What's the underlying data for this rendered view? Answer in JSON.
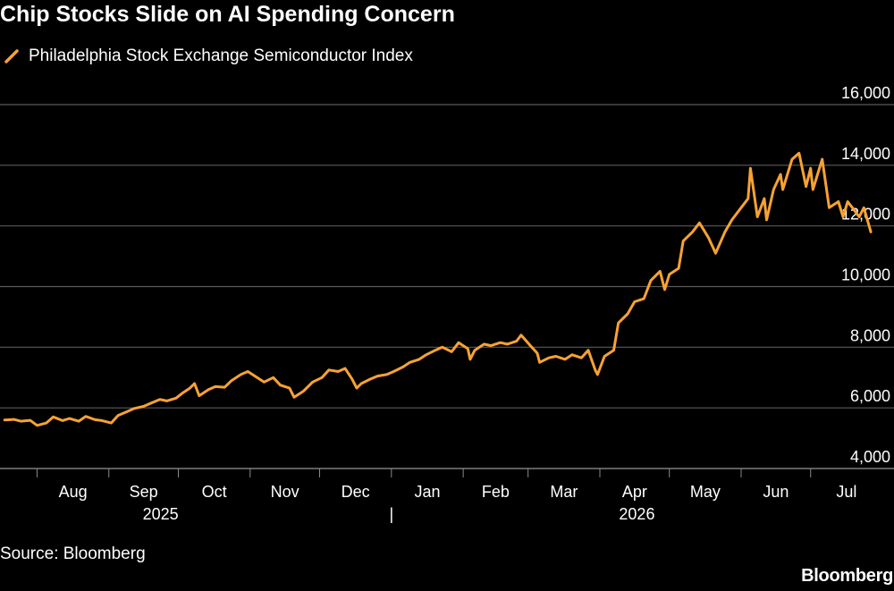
{
  "title": "Chip Stocks Slide on AI Spending Concern",
  "source": "Source: Bloomberg",
  "brand": "Bloomberg",
  "colors": {
    "background": "#000000",
    "series": "#F7A233",
    "grid": "#5a5a5a",
    "text": "#ffffff"
  },
  "chart_data": {
    "type": "line",
    "title": "Chip Stocks Slide on AI Spending Concern",
    "legend_position": "top-left",
    "grid": "horizontal",
    "ylim": [
      4000,
      16000
    ],
    "y_ticks": [
      4000,
      6000,
      8000,
      10000,
      12000,
      14000,
      16000
    ],
    "y_tick_labels": [
      "4,000",
      "6,000",
      "8,000",
      "10,000",
      "12,000",
      "14,000",
      "16,000"
    ],
    "x_month_labels": [
      "Aug",
      "Sep",
      "Oct",
      "Nov",
      "Dec",
      "Jan",
      "Feb",
      "Mar",
      "Apr",
      "May",
      "Jun",
      "Jul"
    ],
    "x_year_labels": [
      "2025",
      "2026"
    ],
    "x_year_divider": "|",
    "series": [
      {
        "name": "Philadelphia Stock Exchange Semiconductor Index",
        "color": "#F7A233",
        "points": [
          [
            "2025-07-18",
            5600
          ],
          [
            "2025-07-22",
            5620
          ],
          [
            "2025-07-25",
            5560
          ],
          [
            "2025-07-29",
            5590
          ],
          [
            "2025-08-01",
            5420
          ],
          [
            "2025-08-05",
            5500
          ],
          [
            "2025-08-08",
            5700
          ],
          [
            "2025-08-12",
            5580
          ],
          [
            "2025-08-15",
            5650
          ],
          [
            "2025-08-19",
            5560
          ],
          [
            "2025-08-22",
            5720
          ],
          [
            "2025-08-26",
            5610
          ],
          [
            "2025-08-29",
            5580
          ],
          [
            "2025-09-02",
            5500
          ],
          [
            "2025-09-05",
            5750
          ],
          [
            "2025-09-09",
            5880
          ],
          [
            "2025-09-12",
            5980
          ],
          [
            "2025-09-16",
            6050
          ],
          [
            "2025-09-19",
            6150
          ],
          [
            "2025-09-23",
            6280
          ],
          [
            "2025-09-26",
            6230
          ],
          [
            "2025-09-30",
            6320
          ],
          [
            "2025-10-03",
            6500
          ],
          [
            "2025-10-06",
            6650
          ],
          [
            "2025-10-08",
            6800
          ],
          [
            "2025-10-10",
            6400
          ],
          [
            "2025-10-14",
            6600
          ],
          [
            "2025-10-17",
            6700
          ],
          [
            "2025-10-21",
            6680
          ],
          [
            "2025-10-24",
            6900
          ],
          [
            "2025-10-28",
            7100
          ],
          [
            "2025-10-31",
            7200
          ],
          [
            "2025-11-04",
            7000
          ],
          [
            "2025-11-07",
            6850
          ],
          [
            "2025-11-11",
            7000
          ],
          [
            "2025-11-14",
            6750
          ],
          [
            "2025-11-18",
            6650
          ],
          [
            "2025-11-20",
            6350
          ],
          [
            "2025-11-24",
            6550
          ],
          [
            "2025-11-28",
            6850
          ],
          [
            "2025-12-02",
            7000
          ],
          [
            "2025-12-05",
            7250
          ],
          [
            "2025-12-09",
            7200
          ],
          [
            "2025-12-12",
            7300
          ],
          [
            "2025-12-15",
            6950
          ],
          [
            "2025-12-17",
            6650
          ],
          [
            "2025-12-19",
            6800
          ],
          [
            "2025-12-23",
            6950
          ],
          [
            "2025-12-26",
            7050
          ],
          [
            "2025-12-30",
            7100
          ],
          [
            "2026-01-02",
            7200
          ],
          [
            "2026-01-06",
            7350
          ],
          [
            "2026-01-09",
            7500
          ],
          [
            "2026-01-13",
            7600
          ],
          [
            "2026-01-16",
            7750
          ],
          [
            "2026-01-20",
            7900
          ],
          [
            "2026-01-23",
            8000
          ],
          [
            "2026-01-27",
            7850
          ],
          [
            "2026-01-30",
            8150
          ],
          [
            "2026-02-03",
            7950
          ],
          [
            "2026-02-04",
            7600
          ],
          [
            "2026-02-06",
            7900
          ],
          [
            "2026-02-10",
            8100
          ],
          [
            "2026-02-13",
            8050
          ],
          [
            "2026-02-17",
            8150
          ],
          [
            "2026-02-20",
            8100
          ],
          [
            "2026-02-24",
            8200
          ],
          [
            "2026-02-26",
            8400
          ],
          [
            "2026-03-02",
            8050
          ],
          [
            "2026-03-05",
            7800
          ],
          [
            "2026-03-06",
            7500
          ],
          [
            "2026-03-10",
            7650
          ],
          [
            "2026-03-13",
            7700
          ],
          [
            "2026-03-17",
            7600
          ],
          [
            "2026-03-20",
            7750
          ],
          [
            "2026-03-24",
            7650
          ],
          [
            "2026-03-27",
            7900
          ],
          [
            "2026-03-30",
            7250
          ],
          [
            "2026-03-31",
            7100
          ],
          [
            "2026-04-03",
            7700
          ],
          [
            "2026-04-07",
            7900
          ],
          [
            "2026-04-09",
            8800
          ],
          [
            "2026-04-13",
            9100
          ],
          [
            "2026-04-16",
            9500
          ],
          [
            "2026-04-20",
            9600
          ],
          [
            "2026-04-23",
            10200
          ],
          [
            "2026-04-27",
            10500
          ],
          [
            "2026-04-29",
            9900
          ],
          [
            "2026-05-01",
            10400
          ],
          [
            "2026-05-05",
            10600
          ],
          [
            "2026-05-07",
            11500
          ],
          [
            "2026-05-11",
            11800
          ],
          [
            "2026-05-14",
            12100
          ],
          [
            "2026-05-18",
            11600
          ],
          [
            "2026-05-21",
            11100
          ],
          [
            "2026-05-25",
            11800
          ],
          [
            "2026-05-28",
            12200
          ],
          [
            "2026-06-01",
            12600
          ],
          [
            "2026-06-04",
            12900
          ],
          [
            "2026-06-05",
            13900
          ],
          [
            "2026-06-08",
            12300
          ],
          [
            "2026-06-11",
            12900
          ],
          [
            "2026-06-12",
            12200
          ],
          [
            "2026-06-15",
            13200
          ],
          [
            "2026-06-18",
            13700
          ],
          [
            "2026-06-19",
            13200
          ],
          [
            "2026-06-23",
            14200
          ],
          [
            "2026-06-26",
            14400
          ],
          [
            "2026-06-29",
            13300
          ],
          [
            "2026-07-01",
            13900
          ],
          [
            "2026-07-02",
            13200
          ],
          [
            "2026-07-06",
            14200
          ],
          [
            "2026-07-09",
            12600
          ],
          [
            "2026-07-13",
            12800
          ],
          [
            "2026-07-15",
            12300
          ],
          [
            "2026-07-17",
            12800
          ],
          [
            "2026-07-20",
            12500
          ],
          [
            "2026-07-22",
            12300
          ],
          [
            "2026-07-24",
            12600
          ],
          [
            "2026-07-27",
            11800
          ]
        ]
      }
    ]
  }
}
